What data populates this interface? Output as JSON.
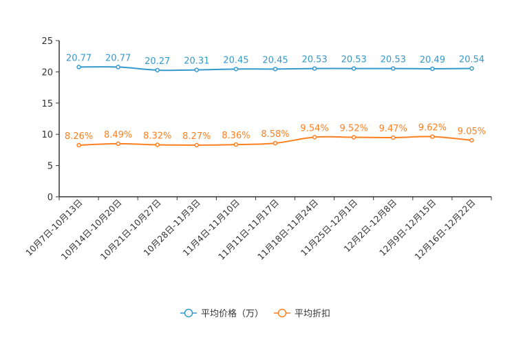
{
  "colors": {
    "series1": "#3398cc",
    "series2": "#ff7f1e",
    "axis": "#333333",
    "tick_text": "#333333",
    "legend_text": "#333333"
  },
  "chart_data": {
    "type": "line",
    "title": "",
    "xlabel": "",
    "ylabel": "",
    "ylim": [
      0,
      25
    ],
    "yticks": [
      0,
      5,
      10,
      15,
      20,
      25
    ],
    "grid": false,
    "legend_position": "bottom-center",
    "categories": [
      "10月7日-10月13日",
      "10月14日-10月20日",
      "10月21日-10月27日",
      "10月28日-11月3日",
      "11月4日-11月10日",
      "11月11日-11月17日",
      "11月18日-11月24日",
      "11月25日-12月1日",
      "12月2日-12月8日",
      "12月9日-12月15日",
      "12月16日-12月22日"
    ],
    "series": [
      {
        "name": "平均价格（万）",
        "values": [
          20.77,
          20.77,
          20.27,
          20.31,
          20.45,
          20.45,
          20.53,
          20.53,
          20.53,
          20.49,
          20.54
        ],
        "labels": [
          "20.77",
          "20.77",
          "20.27",
          "20.31",
          "20.45",
          "20.45",
          "20.53",
          "20.53",
          "20.53",
          "20.49",
          "20.54"
        ]
      },
      {
        "name": "平均折扣",
        "values": [
          8.26,
          8.49,
          8.32,
          8.27,
          8.36,
          8.58,
          9.54,
          9.52,
          9.47,
          9.62,
          9.05
        ],
        "labels": [
          "8.26%",
          "8.49%",
          "8.32%",
          "8.27%",
          "8.36%",
          "8.58%",
          "9.54%",
          "9.52%",
          "9.47%",
          "9.62%",
          "9.05%"
        ]
      }
    ]
  }
}
